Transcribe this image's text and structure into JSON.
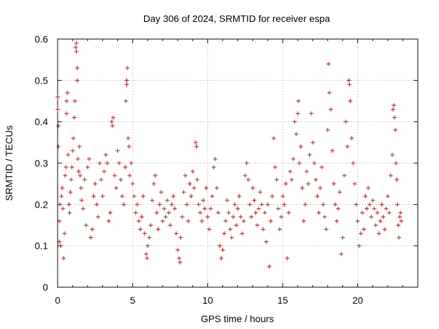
{
  "chart_data": {
    "type": "scatter",
    "title": "Day 306 of 2024, SRMTID for receiver espa",
    "xlabel": "GPS time / hours",
    "ylabel": "SRMTID / TECUs",
    "xlim": [
      0,
      24
    ],
    "ylim": [
      0,
      0.6
    ],
    "xticks": [
      0,
      5,
      10,
      15,
      20
    ],
    "xtick_labels": [
      "0",
      "5",
      "10",
      "15",
      "20"
    ],
    "yticks": [
      0,
      0.1,
      0.2,
      0.3,
      0.4,
      0.5,
      0.6
    ],
    "ytick_labels": [
      "0",
      "0.1",
      "0.2",
      "0.3",
      "0.4",
      "0.5",
      "0.6"
    ],
    "grid": true,
    "marker": "plus",
    "color": "#ff0000",
    "series": [
      {
        "name": "SRMTID",
        "points": [
          [
            0.0,
            0.46
          ],
          [
            0.0,
            0.43
          ],
          [
            0.05,
            0.39
          ],
          [
            0.05,
            0.34
          ],
          [
            0.1,
            0.16
          ],
          [
            0.1,
            0.11
          ],
          [
            0.15,
            0.2
          ],
          [
            0.2,
            0.1
          ],
          [
            0.25,
            0.22
          ],
          [
            0.3,
            0.24
          ],
          [
            0.35,
            0.19
          ],
          [
            0.4,
            0.07
          ],
          [
            0.45,
            0.13
          ],
          [
            0.5,
            0.27
          ],
          [
            0.55,
            0.29
          ],
          [
            0.6,
            0.42
          ],
          [
            0.6,
            0.45
          ],
          [
            0.65,
            0.47
          ],
          [
            0.7,
            0.32
          ],
          [
            0.75,
            0.2
          ],
          [
            0.8,
            0.18
          ],
          [
            0.85,
            0.23
          ],
          [
            0.9,
            0.26
          ],
          [
            0.95,
            0.29
          ],
          [
            1.0,
            0.33
          ],
          [
            1.05,
            0.36
          ],
          [
            1.1,
            0.41
          ],
          [
            1.15,
            0.45
          ],
          [
            1.2,
            0.58
          ],
          [
            1.25,
            0.59
          ],
          [
            1.25,
            0.57
          ],
          [
            1.3,
            0.53
          ],
          [
            1.3,
            0.5
          ],
          [
            1.35,
            0.31
          ],
          [
            1.4,
            0.28
          ],
          [
            1.45,
            0.34
          ],
          [
            1.5,
            0.27
          ],
          [
            1.55,
            0.24
          ],
          [
            1.6,
            0.21
          ],
          [
            1.7,
            0.19
          ],
          [
            1.8,
            0.26
          ],
          [
            1.9,
            0.15
          ],
          [
            2.0,
            0.29
          ],
          [
            2.1,
            0.31
          ],
          [
            2.2,
            0.12
          ],
          [
            2.3,
            0.14
          ],
          [
            2.4,
            0.22
          ],
          [
            2.5,
            0.25
          ],
          [
            2.6,
            0.2
          ],
          [
            2.7,
            0.17
          ],
          [
            2.8,
            0.3
          ],
          [
            2.9,
            0.26
          ],
          [
            3.0,
            0.22
          ],
          [
            3.1,
            0.28
          ],
          [
            3.2,
            0.32
          ],
          [
            3.3,
            0.3
          ],
          [
            3.4,
            0.16
          ],
          [
            3.5,
            0.18
          ],
          [
            3.6,
            0.4
          ],
          [
            3.65,
            0.39
          ],
          [
            3.7,
            0.41
          ],
          [
            3.8,
            0.27
          ],
          [
            3.9,
            0.24
          ],
          [
            4.0,
            0.33
          ],
          [
            4.1,
            0.3
          ],
          [
            4.2,
            0.26
          ],
          [
            4.3,
            0.22
          ],
          [
            4.4,
            0.2
          ],
          [
            4.5,
            0.29
          ],
          [
            4.55,
            0.45
          ],
          [
            4.6,
            0.49
          ],
          [
            4.6,
            0.5
          ],
          [
            4.65,
            0.53
          ],
          [
            4.7,
            0.36
          ],
          [
            4.75,
            0.34
          ],
          [
            4.8,
            0.27
          ],
          [
            4.9,
            0.3
          ],
          [
            5.0,
            0.25
          ],
          [
            5.1,
            0.22
          ],
          [
            5.2,
            0.18
          ],
          [
            5.3,
            0.2
          ],
          [
            5.4,
            0.16
          ],
          [
            5.5,
            0.14
          ],
          [
            5.6,
            0.17
          ],
          [
            5.7,
            0.22
          ],
          [
            5.8,
            0.13
          ],
          [
            5.9,
            0.08
          ],
          [
            5.95,
            0.07
          ],
          [
            6.0,
            0.1
          ],
          [
            6.1,
            0.12
          ],
          [
            6.2,
            0.15
          ],
          [
            6.3,
            0.21
          ],
          [
            6.4,
            0.25
          ],
          [
            6.5,
            0.27
          ],
          [
            6.6,
            0.18
          ],
          [
            6.7,
            0.14
          ],
          [
            6.8,
            0.2
          ],
          [
            6.9,
            0.23
          ],
          [
            7.0,
            0.16
          ],
          [
            7.1,
            0.19
          ],
          [
            7.2,
            0.17
          ],
          [
            7.3,
            0.21
          ],
          [
            7.4,
            0.18
          ],
          [
            7.5,
            0.15
          ],
          [
            7.6,
            0.2
          ],
          [
            7.7,
            0.22
          ],
          [
            7.8,
            0.19
          ],
          [
            7.9,
            0.13
          ],
          [
            8.0,
            0.09
          ],
          [
            8.1,
            0.07
          ],
          [
            8.15,
            0.06
          ],
          [
            8.2,
            0.12
          ],
          [
            8.3,
            0.17
          ],
          [
            8.4,
            0.23
          ],
          [
            8.5,
            0.27
          ],
          [
            8.6,
            0.2
          ],
          [
            8.7,
            0.16
          ],
          [
            8.8,
            0.25
          ],
          [
            8.9,
            0.22
          ],
          [
            9.0,
            0.28
          ],
          [
            9.1,
            0.24
          ],
          [
            9.2,
            0.35
          ],
          [
            9.25,
            0.34
          ],
          [
            9.3,
            0.26
          ],
          [
            9.4,
            0.2
          ],
          [
            9.5,
            0.18
          ],
          [
            9.6,
            0.16
          ],
          [
            9.7,
            0.21
          ],
          [
            9.8,
            0.19
          ],
          [
            9.9,
            0.24
          ],
          [
            10.0,
            0.17
          ],
          [
            10.1,
            0.14
          ],
          [
            10.2,
            0.19
          ],
          [
            10.3,
            0.22
          ],
          [
            10.4,
            0.29
          ],
          [
            10.5,
            0.31
          ],
          [
            10.6,
            0.24
          ],
          [
            10.7,
            0.18
          ],
          [
            10.8,
            0.1
          ],
          [
            10.9,
            0.07
          ],
          [
            11.0,
            0.09
          ],
          [
            11.1,
            0.13
          ],
          [
            11.2,
            0.16
          ],
          [
            11.3,
            0.21
          ],
          [
            11.4,
            0.18
          ],
          [
            11.5,
            0.14
          ],
          [
            11.6,
            0.12
          ],
          [
            11.7,
            0.17
          ],
          [
            11.8,
            0.2
          ],
          [
            11.9,
            0.15
          ],
          [
            12.0,
            0.19
          ],
          [
            12.1,
            0.22
          ],
          [
            12.2,
            0.17
          ],
          [
            12.3,
            0.13
          ],
          [
            12.4,
            0.16
          ],
          [
            12.5,
            0.27
          ],
          [
            12.6,
            0.3
          ],
          [
            12.7,
            0.26
          ],
          [
            12.8,
            0.2
          ],
          [
            12.9,
            0.17
          ],
          [
            13.0,
            0.24
          ],
          [
            13.1,
            0.21
          ],
          [
            13.2,
            0.18
          ],
          [
            13.3,
            0.15
          ],
          [
            13.4,
            0.19
          ],
          [
            13.5,
            0.23
          ],
          [
            13.6,
            0.2
          ],
          [
            13.7,
            0.14
          ],
          [
            13.8,
            0.18
          ],
          [
            13.9,
            0.11
          ],
          [
            14.0,
            0.2
          ],
          [
            14.1,
            0.05
          ],
          [
            14.2,
            0.16
          ],
          [
            14.3,
            0.22
          ],
          [
            14.4,
            0.36
          ],
          [
            14.5,
            0.29
          ],
          [
            14.6,
            0.26
          ],
          [
            14.7,
            0.19
          ],
          [
            14.8,
            0.14
          ],
          [
            14.9,
            0.17
          ],
          [
            15.0,
            0.22
          ],
          [
            15.1,
            0.2
          ],
          [
            15.2,
            0.25
          ],
          [
            15.3,
            0.07
          ],
          [
            15.4,
            0.18
          ],
          [
            15.5,
            0.28
          ],
          [
            15.6,
            0.26
          ],
          [
            15.7,
            0.31
          ],
          [
            15.8,
            0.4
          ],
          [
            15.9,
            0.37
          ],
          [
            16.0,
            0.42
          ],
          [
            16.05,
            0.45
          ],
          [
            16.1,
            0.3
          ],
          [
            16.2,
            0.34
          ],
          [
            16.3,
            0.24
          ],
          [
            16.4,
            0.16
          ],
          [
            16.5,
            0.2
          ],
          [
            16.6,
            0.28
          ],
          [
            16.7,
            0.25
          ],
          [
            16.8,
            0.32
          ],
          [
            16.9,
            0.42
          ],
          [
            17.0,
            0.35
          ],
          [
            17.1,
            0.3
          ],
          [
            17.2,
            0.26
          ],
          [
            17.3,
            0.22
          ],
          [
            17.4,
            0.18
          ],
          [
            17.5,
            0.24
          ],
          [
            17.6,
            0.29
          ],
          [
            17.7,
            0.2
          ],
          [
            17.8,
            0.17
          ],
          [
            17.9,
            0.14
          ],
          [
            18.0,
            0.38
          ],
          [
            18.05,
            0.54
          ],
          [
            18.1,
            0.47
          ],
          [
            18.2,
            0.43
          ],
          [
            18.3,
            0.33
          ],
          [
            18.4,
            0.25
          ],
          [
            18.5,
            0.2
          ],
          [
            18.6,
            0.16
          ],
          [
            18.7,
            0.19
          ],
          [
            18.8,
            0.23
          ],
          [
            18.9,
            0.08
          ],
          [
            19.0,
            0.12
          ],
          [
            19.1,
            0.27
          ],
          [
            19.2,
            0.4
          ],
          [
            19.3,
            0.34
          ],
          [
            19.4,
            0.5
          ],
          [
            19.45,
            0.49
          ],
          [
            19.5,
            0.45
          ],
          [
            19.6,
            0.36
          ],
          [
            19.7,
            0.3
          ],
          [
            19.8,
            0.25
          ],
          [
            19.9,
            0.2
          ],
          [
            20.0,
            0.16
          ],
          [
            20.1,
            0.1
          ],
          [
            20.2,
            0.13
          ],
          [
            20.3,
            0.18
          ],
          [
            20.4,
            0.14
          ],
          [
            20.5,
            0.22
          ],
          [
            20.6,
            0.19
          ],
          [
            20.7,
            0.24
          ],
          [
            20.8,
            0.2
          ],
          [
            20.9,
            0.17
          ],
          [
            21.0,
            0.21
          ],
          [
            21.1,
            0.19
          ],
          [
            21.2,
            0.15
          ],
          [
            21.3,
            0.18
          ],
          [
            21.4,
            0.13
          ],
          [
            21.5,
            0.16
          ],
          [
            21.6,
            0.2
          ],
          [
            21.7,
            0.17
          ],
          [
            21.8,
            0.14
          ],
          [
            21.9,
            0.19
          ],
          [
            22.0,
            0.22
          ],
          [
            22.1,
            0.18
          ],
          [
            22.2,
            0.27
          ],
          [
            22.3,
            0.32
          ],
          [
            22.35,
            0.43
          ],
          [
            22.4,
            0.44
          ],
          [
            22.45,
            0.41
          ],
          [
            22.5,
            0.38
          ],
          [
            22.55,
            0.3
          ],
          [
            22.6,
            0.26
          ],
          [
            22.65,
            0.2
          ],
          [
            22.7,
            0.15
          ],
          [
            22.75,
            0.12
          ],
          [
            22.8,
            0.17
          ],
          [
            22.85,
            0.18
          ],
          [
            22.9,
            0.16
          ]
        ]
      }
    ]
  }
}
